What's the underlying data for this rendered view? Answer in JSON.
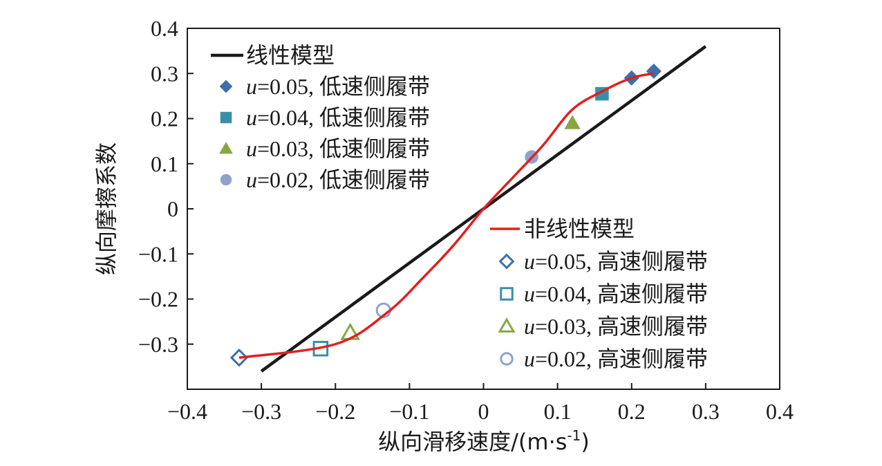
{
  "chart_data": {
    "type": "scatter",
    "xlabel": "纵向滑移速度/(m·s",
    "xlabel_sup": "-1",
    "xlabel_end": ")",
    "ylabel": "纵向摩擦系数",
    "xlim": [
      -0.4,
      0.4
    ],
    "ylim": [
      -0.4,
      0.4
    ],
    "xticks": [
      -0.4,
      -0.3,
      -0.2,
      -0.1,
      0,
      0.1,
      0.2,
      0.3,
      0.4
    ],
    "yticks": [
      -0.3,
      -0.2,
      -0.1,
      0,
      0.1,
      0.2,
      0.3,
      0.4
    ],
    "xtick_labels": [
      "−0.4",
      "−0.3",
      "−0.2",
      "−0.1",
      "0",
      "0.1",
      "0.2",
      "0.3",
      "0.4"
    ],
    "ytick_labels": [
      "−0.3",
      "−0.2",
      "−0.1",
      "0",
      "0.1",
      "0.2",
      "0.3",
      "0.4"
    ],
    "legend_top_left": [
      {
        "key": "linear",
        "text": "线性模型"
      },
      {
        "key": "l005",
        "u": "u",
        "eq": "=0.05,",
        "cn": "低速侧履带"
      },
      {
        "key": "l004",
        "u": "u",
        "eq": "=0.04,",
        "cn": "低速侧履带"
      },
      {
        "key": "l003",
        "u": "u",
        "eq": "=0.03,",
        "cn": "低速侧履带"
      },
      {
        "key": "l002",
        "u": "u",
        "eq": "=0.02,",
        "cn": "低速侧履带"
      }
    ],
    "legend_bottom_right": [
      {
        "key": "nonlinear",
        "text": "非线性模型"
      },
      {
        "key": "h005",
        "u": "u",
        "eq": "=0.05,",
        "cn": "高速侧履带"
      },
      {
        "key": "h004",
        "u": "u",
        "eq": "=0.04,",
        "cn": "高速侧履带"
      },
      {
        "key": "h003",
        "u": "u",
        "eq": "=0.03,",
        "cn": "高速侧履带"
      },
      {
        "key": "h002",
        "u": "u",
        "eq": "=0.02,",
        "cn": "高速侧履带"
      }
    ],
    "series": [
      {
        "key": "linear",
        "kind": "line",
        "color": "#1a1a1a",
        "x": [
          -0.3,
          0.3
        ],
        "y": [
          -0.36,
          0.36
        ]
      },
      {
        "key": "nonlinear",
        "kind": "curve",
        "color": "#e02020",
        "x": [
          -0.33,
          -0.2,
          -0.13,
          -0.08,
          -0.04,
          0.0,
          0.04,
          0.08,
          0.12,
          0.16,
          0.2,
          0.23
        ],
        "y": [
          -0.33,
          -0.3,
          -0.23,
          -0.15,
          -0.08,
          0.0,
          0.07,
          0.14,
          0.22,
          0.26,
          0.29,
          0.3
        ]
      },
      {
        "key": "l005",
        "kind": "marker",
        "marker": "diamond",
        "filled": true,
        "color": "#3d6eaa",
        "x": [
          0.2,
          0.23
        ],
        "y": [
          0.29,
          0.305
        ]
      },
      {
        "key": "l004",
        "kind": "marker",
        "marker": "square",
        "filled": true,
        "color": "#3a8fa8",
        "x": [
          0.16
        ],
        "y": [
          0.255
        ]
      },
      {
        "key": "l003",
        "kind": "marker",
        "marker": "triangle",
        "filled": true,
        "color": "#86a844",
        "x": [
          0.12
        ],
        "y": [
          0.19
        ]
      },
      {
        "key": "l002",
        "kind": "marker",
        "marker": "circle",
        "filled": true,
        "color": "#8fa2cc",
        "x": [
          0.065
        ],
        "y": [
          0.115
        ]
      },
      {
        "key": "h005",
        "kind": "marker",
        "marker": "diamond",
        "filled": false,
        "color": "#3d6eaa",
        "x": [
          -0.33
        ],
        "y": [
          -0.33
        ]
      },
      {
        "key": "h004",
        "kind": "marker",
        "marker": "square",
        "filled": false,
        "color": "#3a8fa8",
        "x": [
          -0.22
        ],
        "y": [
          -0.31
        ]
      },
      {
        "key": "h003",
        "kind": "marker",
        "marker": "triangle",
        "filled": false,
        "color": "#86a844",
        "x": [
          -0.18
        ],
        "y": [
          -0.275
        ]
      },
      {
        "key": "h002",
        "kind": "marker",
        "marker": "circle",
        "filled": false,
        "color": "#8fa2cc",
        "x": [
          -0.135
        ],
        "y": [
          -0.225
        ]
      }
    ]
  }
}
